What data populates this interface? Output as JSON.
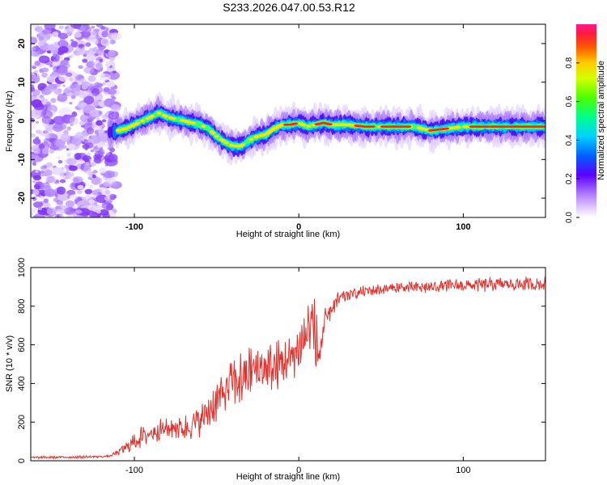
{
  "figure": {
    "title": "S233.2026.047.00.53.R12"
  },
  "chart_data": [
    {
      "type": "heatmap",
      "title": "S233.2026.047.00.53.R12",
      "xlabel": "Height of straight line (km)",
      "ylabel": "Frequency (Hz)",
      "xlim": [
        -163,
        150
      ],
      "ylim": [
        -25,
        25
      ],
      "xticks": [
        -100,
        0,
        100
      ],
      "yticks": [
        -20,
        -10,
        0,
        10,
        20
      ],
      "ridge_height_km": [
        -115,
        -110,
        -105,
        -100,
        -95,
        -90,
        -85,
        -80,
        -75,
        -70,
        -65,
        -60,
        -55,
        -50,
        -45,
        -40,
        -35,
        -30,
        -25,
        -20,
        -15,
        -10,
        -5,
        0,
        5,
        10,
        15,
        20,
        30,
        40,
        50,
        60,
        70,
        80,
        90,
        100,
        110,
        120,
        130,
        140,
        150
      ],
      "ridge_frequency_hz": [
        -3,
        -2.5,
        -2,
        -1,
        0,
        1,
        2,
        1,
        0.5,
        0,
        -0.5,
        -1,
        -2,
        -4,
        -5.5,
        -6.5,
        -6.5,
        -5,
        -4,
        -3.5,
        -2,
        -1,
        -1,
        -0.5,
        -1.5,
        -1,
        -0.5,
        -1,
        -1,
        -1.5,
        -1.5,
        -1.5,
        -1.5,
        -2.5,
        -2,
        -1.5,
        -1.5,
        -1.5,
        -1.5,
        -1.5,
        -1.5
      ],
      "noise_region_km": [
        -163,
        -115
      ],
      "colorbar": {
        "label": "Normalized spectral amplitude",
        "range": [
          0,
          1
        ],
        "ticks": [
          0.0,
          0.2,
          0.4,
          0.6,
          0.8
        ],
        "tick_labels": [
          "0.0",
          "0.2",
          "0.4",
          "0.6",
          "0.8"
        ]
      }
    },
    {
      "type": "line",
      "title": "",
      "xlabel": "Height of straight line (km)",
      "ylabel": "SNR (10 * v/v)",
      "xlim": [
        -163,
        150
      ],
      "ylim": [
        0,
        1000
      ],
      "xticks": [
        -100,
        0,
        100
      ],
      "yticks": [
        0,
        200,
        400,
        600,
        800,
        1000
      ],
      "series": [
        {
          "name": "SNR",
          "color": "#e0312d",
          "x": [
            -163,
            -130,
            -115,
            -110,
            -105,
            -100,
            -95,
            -90,
            -85,
            -80,
            -75,
            -70,
            -65,
            -60,
            -55,
            -50,
            -45,
            -40,
            -35,
            -30,
            -25,
            -20,
            -15,
            -10,
            -5,
            0,
            5,
            8,
            10,
            12,
            15,
            20,
            25,
            30,
            40,
            50,
            60,
            70,
            80,
            90,
            100,
            110,
            120,
            130,
            140,
            150
          ],
          "values": [
            15,
            18,
            22,
            40,
            60,
            90,
            110,
            130,
            150,
            150,
            160,
            150,
            170,
            190,
            230,
            280,
            330,
            380,
            380,
            420,
            440,
            450,
            450,
            480,
            500,
            560,
            620,
            680,
            600,
            500,
            650,
            780,
            830,
            850,
            870,
            880,
            890,
            890,
            890,
            900,
            900,
            900,
            905,
            905,
            905,
            905
          ],
          "noise_amplitude": [
            8,
            8,
            8,
            20,
            40,
            60,
            70,
            70,
            70,
            70,
            80,
            80,
            90,
            100,
            110,
            130,
            160,
            180,
            180,
            180,
            180,
            160,
            160,
            160,
            140,
            150,
            180,
            250,
            200,
            200,
            120,
            60,
            50,
            40,
            35,
            35,
            35,
            35,
            40,
            40,
            40,
            45,
            45,
            45,
            45,
            45
          ]
        }
      ]
    }
  ]
}
